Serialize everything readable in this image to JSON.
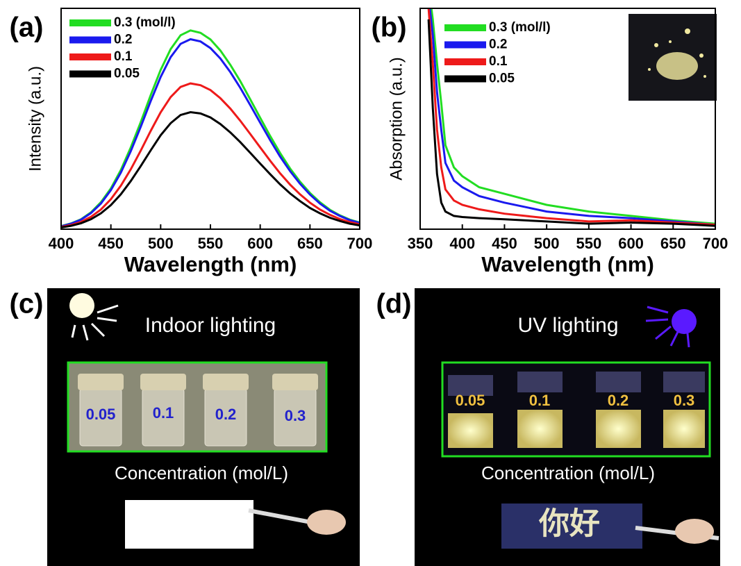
{
  "chart_data": [
    {
      "type": "line",
      "label": "(a)",
      "xlabel": "Wavelength (nm)",
      "ylabel": "Intensity (a.u.)",
      "x": [
        400,
        410,
        420,
        430,
        440,
        450,
        460,
        470,
        480,
        490,
        500,
        510,
        520,
        530,
        540,
        550,
        560,
        570,
        580,
        590,
        600,
        610,
        620,
        630,
        640,
        650,
        660,
        670,
        680,
        690,
        700
      ],
      "xlim": [
        400,
        700
      ],
      "xticks": [
        400,
        450,
        500,
        550,
        600,
        650,
        700
      ],
      "ylim": [
        0,
        100
      ],
      "series": [
        {
          "name": "0.3 (mol/l)",
          "color": "#22dd22",
          "values": [
            1.4,
            2.6,
            4.5,
            7.6,
            12.2,
            18.5,
            26.8,
            37.0,
            48.5,
            60.7,
            72.1,
            81.5,
            87.8,
            90,
            88.9,
            85.9,
            80.9,
            74.4,
            67.0,
            58.8,
            50.4,
            42.2,
            34.5,
            27.5,
            21.5,
            16.4,
            12.2,
            8.8,
            6.3,
            4.3,
            3.0
          ]
        },
        {
          "name": "0.2",
          "color": "#1a1aee",
          "values": [
            1.3,
            2.5,
            4.3,
            7.3,
            11.6,
            17.7,
            25.6,
            35.3,
            46.4,
            58.0,
            68.9,
            77.9,
            83.9,
            86,
            85.0,
            82.0,
            77.3,
            71.1,
            64.0,
            56.2,
            48.2,
            40.3,
            32.9,
            26.3,
            20.6,
            15.7,
            11.6,
            8.4,
            6.0,
            4.1,
            2.8
          ]
        },
        {
          "name": "0.1",
          "color": "#ee1a1a",
          "values": [
            1.0,
            1.9,
            3.3,
            5.6,
            8.9,
            13.6,
            19.7,
            27.1,
            35.6,
            44.5,
            52.9,
            59.8,
            64.4,
            66,
            65.2,
            63.0,
            59.3,
            54.6,
            49.1,
            43.1,
            37.0,
            31.0,
            25.3,
            20.2,
            15.8,
            12.0,
            8.9,
            6.5,
            4.6,
            3.2,
            2.2
          ]
        },
        {
          "name": "0.05",
          "color": "#000000",
          "values": [
            0.8,
            1.5,
            2.7,
            4.5,
            7.2,
            10.9,
            15.8,
            21.8,
            28.6,
            35.7,
            42.5,
            48.0,
            51.7,
            53,
            52.4,
            50.6,
            47.6,
            43.8,
            39.4,
            34.6,
            29.7,
            24.9,
            20.3,
            16.2,
            12.7,
            9.6,
            7.2,
            5.2,
            3.7,
            2.5,
            1.7
          ]
        }
      ]
    },
    {
      "type": "line",
      "label": "(b)",
      "xlabel": "Wavelength (nm)",
      "ylabel": "Absorption (a.u.)",
      "x": [
        360,
        365,
        370,
        375,
        380,
        390,
        400,
        420,
        450,
        500,
        550,
        600,
        650,
        700
      ],
      "xlim": [
        350,
        700
      ],
      "xticks": [
        350,
        400,
        450,
        500,
        550,
        600,
        650,
        700
      ],
      "ylim": [
        0,
        100
      ],
      "series": [
        {
          "name": "0.3 (mol/l)",
          "color": "#22dd22",
          "values": [
            110,
            95,
            75,
            57,
            38,
            28,
            24,
            19,
            16,
            11,
            8,
            6,
            4,
            2.5
          ]
        },
        {
          "name": "0.2",
          "color": "#1a1aee",
          "values": [
            105,
            88,
            62,
            45,
            30,
            22,
            19,
            15,
            12,
            8,
            6,
            5,
            3.5,
            2
          ]
        },
        {
          "name": "0.1",
          "color": "#ee1a1a",
          "values": [
            100,
            75,
            45,
            28,
            18,
            13,
            11,
            9,
            7,
            5,
            3.5,
            4,
            3,
            2
          ]
        },
        {
          "name": "0.05",
          "color": "#000000",
          "values": [
            95,
            55,
            25,
            12,
            8,
            6,
            5.5,
            5,
            4.5,
            3.5,
            2.5,
            3,
            2.5,
            1.5
          ]
        }
      ]
    }
  ],
  "photos": [
    {
      "label": "(c)",
      "title": "Indoor lighting",
      "vials": [
        "0.05",
        "0.1",
        "0.2",
        "0.3"
      ],
      "caption": "Concentration (mol/L)"
    },
    {
      "label": "(d)",
      "title": "UV lighting",
      "vials": [
        "0.05",
        "0.1",
        "0.2",
        "0.3"
      ],
      "caption": "Concentration (mol/L)",
      "writing": "你好"
    }
  ]
}
